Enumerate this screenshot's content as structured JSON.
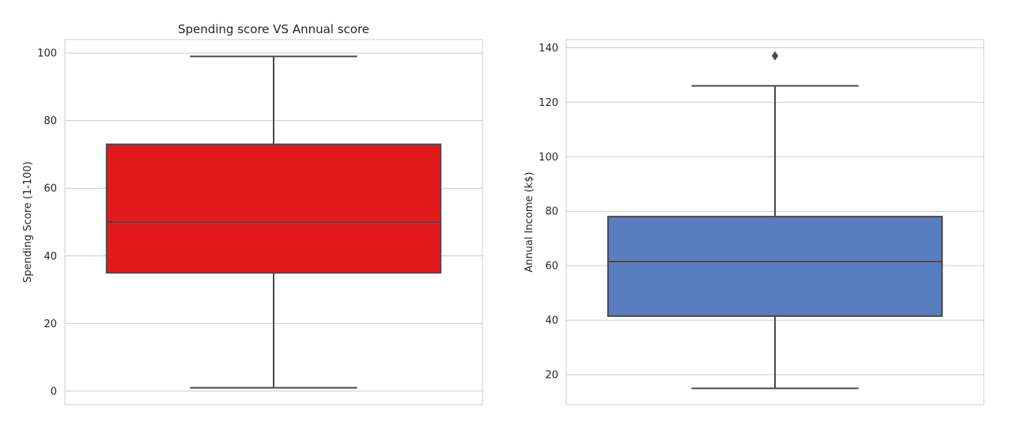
{
  "chart_data": [
    {
      "type": "box",
      "title": "Spending score VS Annual score",
      "xlabel": "",
      "ylabel": "Spending Score (1-100)",
      "ylim": [
        -4,
        104
      ],
      "yticks": [
        0,
        20,
        40,
        60,
        80,
        100
      ],
      "grid": true,
      "box": {
        "whisker_low": 1,
        "q1": 35,
        "median": 50,
        "q3": 73,
        "whisker_high": 99,
        "outliers": []
      },
      "color": "#e31a1c"
    },
    {
      "type": "box",
      "title": "",
      "xlabel": "",
      "ylabel": "Annual Income (k$)",
      "ylim": [
        9,
        143
      ],
      "yticks": [
        20,
        40,
        60,
        80,
        100,
        120,
        140
      ],
      "grid": true,
      "box": {
        "whisker_low": 15,
        "q1": 41.5,
        "median": 61.5,
        "q3": 78,
        "whisker_high": 126,
        "outliers": [
          137
        ]
      },
      "color": "#5a7dc0"
    }
  ]
}
